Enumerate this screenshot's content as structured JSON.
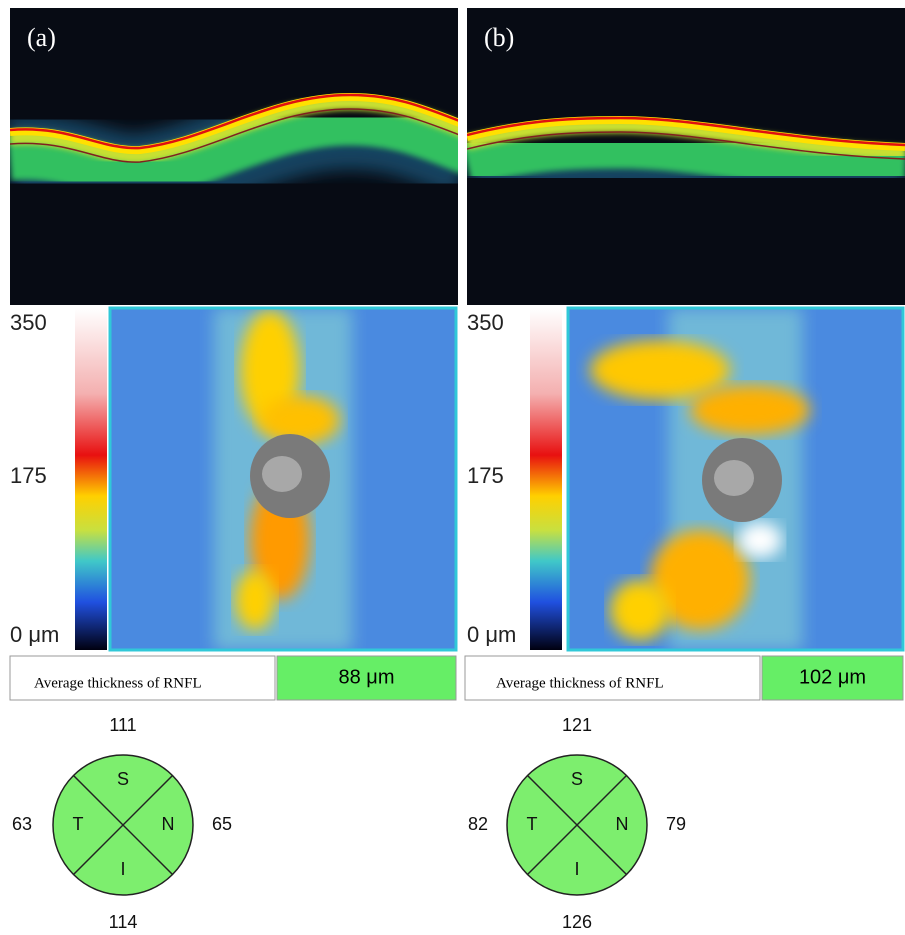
{
  "panels": [
    {
      "label": "(a)",
      "scale": {
        "max": 350,
        "mid": 175,
        "min": "0 μm"
      },
      "average": {
        "label": "Average thickness of  RNFL",
        "value": "88 μm"
      },
      "quadrants": {
        "superior": {
          "letter": "S",
          "value": 111
        },
        "temporal": {
          "letter": "T",
          "value": 63
        },
        "nasal": {
          "letter": "N",
          "value": 65
        },
        "inferior": {
          "letter": "I",
          "value": 114
        }
      }
    },
    {
      "label": "(b)",
      "scale": {
        "max": 350,
        "mid": 175,
        "min": "0 μm"
      },
      "average": {
        "label": "Average thickness of  RNFL",
        "value": "102 μm"
      },
      "quadrants": {
        "superior": {
          "letter": "S",
          "value": 121
        },
        "temporal": {
          "letter": "T",
          "value": 82
        },
        "nasal": {
          "letter": "N",
          "value": 79
        },
        "inferior": {
          "letter": "I",
          "value": 126
        }
      }
    }
  ]
}
